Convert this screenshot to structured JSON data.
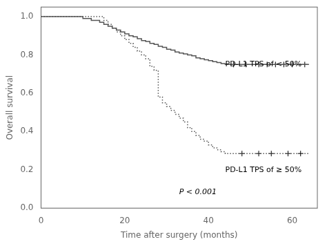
{
  "chart_data": {
    "type": "step",
    "xlabel": "Time after surgery (months)",
    "ylabel": "Overall survival",
    "xlim": [
      0,
      66
    ],
    "ylim": [
      0.0,
      1.05
    ],
    "xticks": [
      0,
      20,
      40,
      60
    ],
    "yticks": [
      {
        "value": 0.0,
        "label": "0.0"
      },
      0.2,
      0.4,
      0.6,
      0.8,
      {
        "value": 1.0,
        "label": "1.0"
      }
    ],
    "grid": false,
    "series": [
      {
        "color": "#555555",
        "line_style": "solid",
        "x": [
          0,
          8,
          10,
          12,
          14,
          15,
          16,
          17,
          18,
          19,
          20,
          21,
          22,
          23,
          24,
          25,
          26,
          27,
          28,
          29,
          30,
          31,
          32,
          33,
          34,
          35,
          36,
          37,
          38,
          39,
          40,
          41,
          42,
          43,
          44,
          64
        ],
        "values": [
          1.0,
          1.0,
          0.99,
          0.98,
          0.97,
          0.96,
          0.95,
          0.94,
          0.93,
          0.92,
          0.91,
          0.9,
          0.895,
          0.885,
          0.875,
          0.87,
          0.86,
          0.855,
          0.845,
          0.84,
          0.83,
          0.825,
          0.815,
          0.81,
          0.805,
          0.8,
          0.795,
          0.785,
          0.78,
          0.775,
          0.77,
          0.765,
          0.76,
          0.755,
          0.75,
          0.75
        ]
      },
      {
        "color": "#555555",
        "line_style": "dotted",
        "x": [
          0,
          14,
          15,
          16,
          17,
          18,
          19,
          20,
          21,
          22,
          23,
          24,
          25,
          26,
          27,
          28,
          29,
          30,
          31,
          32,
          33,
          34,
          35,
          36,
          37,
          38,
          39,
          40,
          41,
          42,
          43,
          44,
          64
        ],
        "values": [
          1.0,
          1.0,
          0.98,
          0.96,
          0.94,
          0.92,
          0.9,
          0.88,
          0.86,
          0.84,
          0.82,
          0.8,
          0.78,
          0.74,
          0.72,
          0.58,
          0.55,
          0.53,
          0.51,
          0.49,
          0.47,
          0.45,
          0.42,
          0.4,
          0.38,
          0.36,
          0.35,
          0.33,
          0.315,
          0.305,
          0.295,
          0.285,
          0.285
        ]
      },
      {
        "type": "scatter",
        "marker": "+",
        "color": "#000000",
        "x": [
          46,
          49,
          52,
          54,
          56,
          58,
          60,
          63
        ],
        "values": [
          0.75,
          0.75,
          0.75,
          0.75,
          0.75,
          0.75,
          0.75,
          0.75
        ]
      },
      {
        "type": "scatter",
        "marker": "+",
        "color": "#000000",
        "x": [
          48,
          52,
          55,
          59,
          62
        ],
        "values": [
          0.285,
          0.285,
          0.285,
          0.285,
          0.285
        ]
      }
    ],
    "annotations": [
      {
        "text": "PD-L1 TPS of < 50%",
        "x": 44,
        "y": 0.75
      },
      {
        "text": "PD-L1 TPS of ≥ 50%",
        "x": 44,
        "y": 0.2
      },
      {
        "text": "P < 0.001"
      }
    ]
  }
}
